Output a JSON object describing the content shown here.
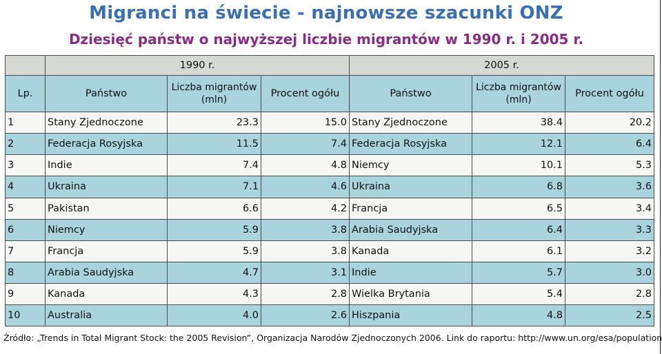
{
  "header": {
    "title": "Migranci na świecie - najnowsze szacunki ONZ",
    "subtitle": "Dziesięć państw o najwyższej liczbie migrantów w 1990 r. i 2005 r."
  },
  "table": {
    "period_1990": "1990 r.",
    "period_2005": "2005 r.",
    "columns": {
      "lp": "Lp.",
      "country_1990": "Państwo",
      "migrants_1990": "Liczba migrantów (mln)",
      "percent_1990": "Procent ogółu",
      "country_2005": "Państwo",
      "migrants_2005": "Liczba migrantów (mln)",
      "percent_2005": "Procent ogółu"
    },
    "rows": [
      {
        "lp": "1",
        "c1990": "Stany Zjednoczone",
        "m1990": "23.3",
        "p1990": "15.0",
        "c2005": "Stany Zjednoczone",
        "m2005": "38.4",
        "p2005": "20.2"
      },
      {
        "lp": "2",
        "c1990": "Federacja Rosyjska",
        "m1990": "11.5",
        "p1990": "7.4",
        "c2005": "Federacja Rosyjska",
        "m2005": "12.1",
        "p2005": "6.4"
      },
      {
        "lp": "3",
        "c1990": "Indie",
        "m1990": "7.4",
        "p1990": "4.8",
        "c2005": "Niemcy",
        "m2005": "10.1",
        "p2005": "5.3"
      },
      {
        "lp": "4",
        "c1990": "Ukraina",
        "m1990": "7.1",
        "p1990": "4.6",
        "c2005": "Ukraina",
        "m2005": "6.8",
        "p2005": "3.6"
      },
      {
        "lp": "5",
        "c1990": "Pakistan",
        "m1990": "6.6",
        "p1990": "4.2",
        "c2005": "Francja",
        "m2005": "6.5",
        "p2005": "3.4"
      },
      {
        "lp": "6",
        "c1990": "Niemcy",
        "m1990": "5.9",
        "p1990": "3.8",
        "c2005": "Arabia Saudyjska",
        "m2005": "6.4",
        "p2005": "3.3"
      },
      {
        "lp": "7",
        "c1990": "Francja",
        "m1990": "5.9",
        "p1990": "3.8",
        "c2005": "Kanada",
        "m2005": "6.1",
        "p2005": "3.2"
      },
      {
        "lp": "8",
        "c1990": "Arabia Saudyjska",
        "m1990": "4.7",
        "p1990": "3.1",
        "c2005": "Indie",
        "m2005": "5.7",
        "p2005": "3.0"
      },
      {
        "lp": "9",
        "c1990": "Kanada",
        "m1990": "4.3",
        "p1990": "2.8",
        "c2005": "Wielka Brytania",
        "m2005": "5.4",
        "p2005": "2.8"
      },
      {
        "lp": "10",
        "c1990": "Australia",
        "m1990": "4.0",
        "p1990": "2.6",
        "c2005": "Hiszpania",
        "m2005": "4.8",
        "p2005": "2.5"
      }
    ]
  },
  "footer": {
    "source": "Źródło: „Trends in Total Migrant Stock: the 2005 Revision”, Organizacja Narodów Zjednoczonych 2006. Link do raportu: http://www.un.org/esa/population/"
  },
  "colors": {
    "title": "#3b6fb4",
    "subtitle": "#8a2b86",
    "header_fill": "#a9d4de",
    "period_fill": "#d6d8d4",
    "odd_row_fill": "#f6f7f5",
    "even_row_fill": "#a9d4de"
  }
}
